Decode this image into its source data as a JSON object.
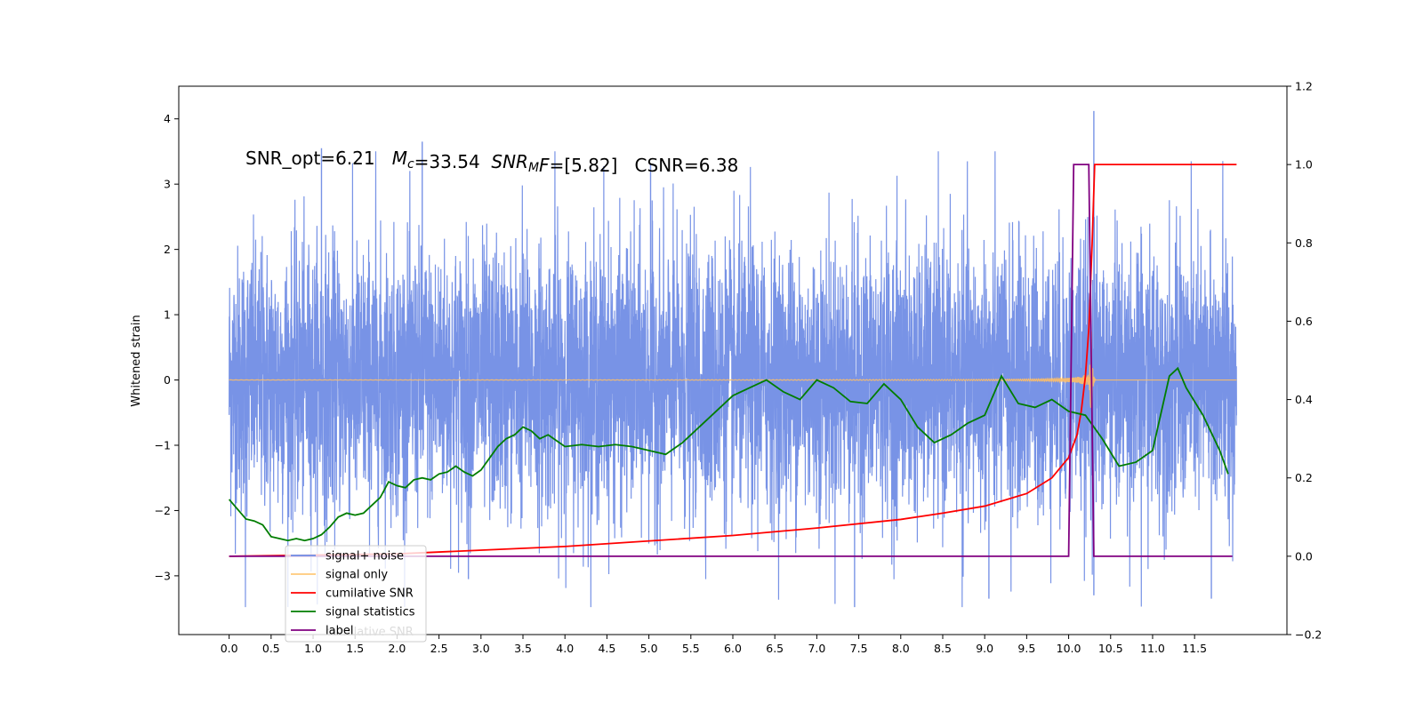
{
  "chart_data": {
    "type": "line",
    "title": "",
    "annotation_text": "SNR_opt=6.21   Mc=33.54  SNRMF=[5.82]   CSNR=6.38",
    "annotation_parts": [
      {
        "text": "SNR_opt=6.21   ",
        "style": "normal"
      },
      {
        "text": "M",
        "style": "italic"
      },
      {
        "text": "c",
        "style": "italic-sub"
      },
      {
        "text": "=33.54  ",
        "style": "normal"
      },
      {
        "text": "SNR",
        "style": "italic"
      },
      {
        "text": "M",
        "style": "italic-sub"
      },
      {
        "text": "F",
        "style": "italic"
      },
      {
        "text": "=[5.82]   CSNR=6.38",
        "style": "normal"
      }
    ],
    "xlabel": "",
    "ylabel": "Whitened strain",
    "y2label": "",
    "xlim": [
      -0.6,
      12.6
    ],
    "ylim": [
      -3.9,
      4.5
    ],
    "y2lim": [
      -0.2,
      1.2
    ],
    "x_ticks": [
      "0.0",
      "0.5",
      "1.0",
      "1.5",
      "2.0",
      "2.5",
      "3.0",
      "3.5",
      "4.0",
      "4.5",
      "5.0",
      "5.5",
      "6.0",
      "6.5",
      "7.0",
      "7.5",
      "8.0",
      "8.5",
      "9.0",
      "9.5",
      "10.0",
      "10.5",
      "11.0",
      "11.5"
    ],
    "y_ticks": [
      "−3",
      "−2",
      "−1",
      "0",
      "1",
      "2",
      "3",
      "4"
    ],
    "y2_ticks": [
      "−0.2",
      "0.0",
      "0.2",
      "0.4",
      "0.6",
      "0.8",
      "1.0",
      "1.2"
    ],
    "grid": false,
    "legend_position": "lower-left",
    "legend": [
      {
        "label": "signal+ noise",
        "color": "#6d8ce6"
      },
      {
        "label": "signal only",
        "color": "#ffc97a"
      },
      {
        "label": "cumilative SNR",
        "color": "#ff0000"
      },
      {
        "label": "signal statistics",
        "color": "#007d00"
      },
      {
        "label": "label",
        "color": "#800080"
      }
    ],
    "legend_overlap_text": "cumilative SNR",
    "noise": {
      "name": "signal+ noise",
      "color": "#7893e6",
      "x_range": [
        0.0,
        12.0
      ],
      "typical_amplitude": 1.3,
      "max": 4.12,
      "min": -3.48
    },
    "signal_only": {
      "name": "signal only",
      "color": "#ffbf66",
      "x_range": [
        0.0,
        12.0
      ],
      "peak_time": 10.27,
      "peak_amplitude": 1.0
    },
    "series": [
      {
        "name": "cumilative SNR",
        "axis": "right",
        "color": "#ff0000",
        "x": [
          0.0,
          2.0,
          4.0,
          6.0,
          7.0,
          8.0,
          8.5,
          9.0,
          9.5,
          9.8,
          10.0,
          10.1,
          10.15,
          10.2,
          10.24,
          10.28,
          10.31,
          12.0
        ],
        "values": [
          0.0,
          0.006,
          0.025,
          0.053,
          0.072,
          0.094,
          0.11,
          0.128,
          0.16,
          0.2,
          0.252,
          0.31,
          0.37,
          0.46,
          0.58,
          0.8,
          1.0,
          1.0
        ]
      },
      {
        "name": "signal statistics",
        "axis": "right",
        "color": "#007d00",
        "x": [
          0.0,
          0.1,
          0.2,
          0.3,
          0.4,
          0.5,
          0.6,
          0.7,
          0.8,
          0.9,
          1.0,
          1.1,
          1.2,
          1.3,
          1.4,
          1.5,
          1.6,
          1.7,
          1.8,
          1.9,
          2.0,
          2.1,
          2.2,
          2.3,
          2.4,
          2.5,
          2.6,
          2.7,
          2.8,
          2.9,
          3.0,
          3.1,
          3.2,
          3.3,
          3.4,
          3.5,
          3.6,
          3.7,
          3.8,
          3.9,
          4.0,
          4.2,
          4.4,
          4.6,
          4.8,
          5.0,
          5.2,
          5.4,
          5.6,
          5.8,
          6.0,
          6.2,
          6.4,
          6.6,
          6.8,
          7.0,
          7.2,
          7.4,
          7.6,
          7.8,
          8.0,
          8.2,
          8.4,
          8.6,
          8.8,
          9.0,
          9.2,
          9.4,
          9.6,
          9.8,
          10.0,
          10.2,
          10.4,
          10.6,
          10.8,
          11.0,
          11.2,
          11.3,
          11.4,
          11.6,
          11.8,
          11.9
        ],
        "values": [
          0.145,
          0.12,
          0.095,
          0.09,
          0.08,
          0.05,
          0.045,
          0.04,
          0.045,
          0.04,
          0.045,
          0.055,
          0.075,
          0.1,
          0.11,
          0.105,
          0.11,
          0.13,
          0.15,
          0.19,
          0.18,
          0.175,
          0.195,
          0.2,
          0.195,
          0.21,
          0.215,
          0.23,
          0.215,
          0.205,
          0.22,
          0.25,
          0.28,
          0.3,
          0.31,
          0.33,
          0.32,
          0.3,
          0.31,
          0.295,
          0.28,
          0.285,
          0.28,
          0.285,
          0.28,
          0.27,
          0.26,
          0.29,
          0.33,
          0.37,
          0.41,
          0.43,
          0.45,
          0.42,
          0.4,
          0.45,
          0.43,
          0.395,
          0.39,
          0.44,
          0.4,
          0.33,
          0.29,
          0.31,
          0.34,
          0.36,
          0.46,
          0.39,
          0.38,
          0.4,
          0.37,
          0.36,
          0.3,
          0.23,
          0.24,
          0.27,
          0.46,
          0.48,
          0.43,
          0.36,
          0.27,
          0.21
        ]
      },
      {
        "name": "label",
        "axis": "right",
        "color": "#800080",
        "x": [
          0.0,
          10.0,
          10.06,
          10.24,
          10.3,
          11.95
        ],
        "values": [
          0.0,
          0.0,
          1.0,
          1.0,
          0.0,
          0.0
        ]
      }
    ]
  }
}
